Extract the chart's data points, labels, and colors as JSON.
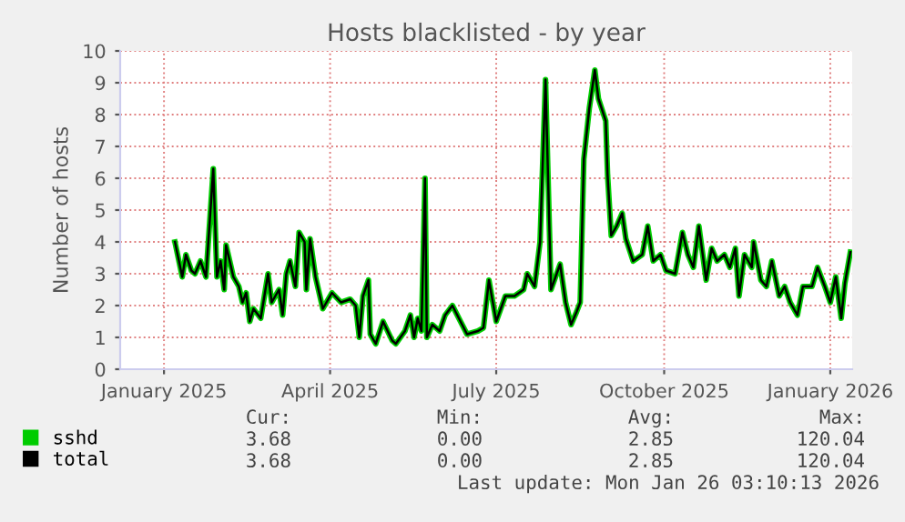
{
  "chart_data": {
    "type": "line",
    "title": "Hosts blacklisted - by year",
    "ylabel": "Number of hosts",
    "x": [
      "2025-01-21",
      "2025-01-25",
      "2025-01-27",
      "2025-01-30",
      "2025-02-01",
      "2025-02-04",
      "2025-02-07",
      "2025-02-11",
      "2025-02-13",
      "2025-02-15",
      "2025-02-17",
      "2025-02-18",
      "2025-02-20",
      "2025-02-22",
      "2025-02-25",
      "2025-02-27",
      "2025-03-01",
      "2025-03-03",
      "2025-03-05",
      "2025-03-09",
      "2025-03-13",
      "2025-03-15",
      "2025-03-19",
      "2025-03-21",
      "2025-03-23",
      "2025-03-25",
      "2025-03-28",
      "2025-03-30",
      "2025-04-02",
      "2025-04-03",
      "2025-04-05",
      "2025-04-08",
      "2025-04-12",
      "2025-04-17",
      "2025-04-22",
      "2025-04-27",
      "2025-04-30",
      "2025-05-02",
      "2025-05-04",
      "2025-05-07",
      "2025-05-08",
      "2025-05-11",
      "2025-05-15",
      "2025-05-20",
      "2025-05-22",
      "2025-05-27",
      "2025-05-30",
      "2025-06-01",
      "2025-06-03",
      "2025-06-05",
      "2025-06-07",
      "2025-06-08",
      "2025-06-11",
      "2025-06-15",
      "2025-06-18",
      "2025-06-22",
      "2025-06-30",
      "2025-07-06",
      "2025-07-09",
      "2025-07-12",
      "2025-07-16",
      "2025-07-21",
      "2025-07-26",
      "2025-07-31",
      "2025-08-02",
      "2025-08-06",
      "2025-08-09",
      "2025-08-12",
      "2025-08-15",
      "2025-08-20",
      "2025-08-23",
      "2025-08-26",
      "2025-08-29",
      "2025-08-31",
      "2025-09-02",
      "2025-09-05",
      "2025-09-08",
      "2025-09-10",
      "2025-09-14",
      "2025-09-15",
      "2025-09-17",
      "2025-09-20",
      "2025-09-23",
      "2025-09-25",
      "2025-09-29",
      "2025-10-04",
      "2025-10-07",
      "2025-10-10",
      "2025-10-14",
      "2025-10-17",
      "2025-10-22",
      "2025-10-26",
      "2025-10-29",
      "2025-11-01",
      "2025-11-04",
      "2025-11-08",
      "2025-11-11",
      "2025-11-14",
      "2025-11-18",
      "2025-11-21",
      "2025-11-24",
      "2025-11-26",
      "2025-11-29",
      "2025-12-03",
      "2025-12-04",
      "2025-12-08",
      "2025-12-11",
      "2025-12-14",
      "2025-12-18",
      "2025-12-21",
      "2025-12-24",
      "2025-12-28",
      "2025-12-31",
      "2026-01-05",
      "2026-01-08",
      "2026-01-12",
      "2026-01-15",
      "2026-01-18",
      "2026-01-21",
      "2026-01-23",
      "2026-01-26"
    ],
    "series": [
      {
        "name": "sshd",
        "color": "#00cc00",
        "values": [
          4.0,
          2.9,
          3.6,
          3.1,
          3.0,
          3.4,
          2.9,
          6.3,
          2.9,
          3.4,
          2.5,
          3.9,
          3.4,
          2.9,
          2.6,
          2.1,
          2.4,
          1.5,
          1.9,
          1.6,
          3.0,
          2.1,
          2.5,
          1.7,
          3.0,
          3.4,
          2.6,
          4.3,
          4.0,
          2.5,
          4.1,
          2.9,
          1.9,
          2.4,
          2.1,
          2.2,
          2.0,
          1.0,
          2.3,
          2.8,
          1.1,
          0.8,
          1.5,
          0.9,
          0.8,
          1.2,
          1.7,
          1.0,
          1.6,
          1.2,
          6.0,
          1.0,
          1.4,
          1.2,
          1.7,
          2.0,
          1.1,
          1.2,
          1.3,
          2.8,
          1.5,
          2.3,
          2.3,
          2.5,
          3.0,
          2.6,
          4.0,
          9.1,
          2.5,
          3.3,
          2.1,
          1.4,
          1.8,
          2.1,
          6.6,
          8.2,
          9.4,
          8.5,
          7.8,
          6.1,
          4.2,
          4.5,
          4.9,
          4.1,
          3.4,
          3.6,
          4.5,
          3.4,
          3.6,
          3.1,
          3.0,
          4.3,
          3.6,
          3.2,
          4.5,
          2.8,
          3.8,
          3.4,
          3.6,
          3.2,
          3.8,
          2.3,
          3.6,
          3.2,
          4.0,
          2.8,
          2.6,
          3.4,
          2.3,
          2.6,
          2.1,
          1.7,
          2.6,
          2.6,
          3.2,
          2.6,
          2.1,
          2.9,
          1.6,
          2.7,
          3.68
        ]
      },
      {
        "name": "total",
        "color": "#000000",
        "values": [
          4.0,
          2.9,
          3.6,
          3.1,
          3.0,
          3.4,
          2.9,
          6.3,
          2.9,
          3.4,
          2.5,
          3.9,
          3.4,
          2.9,
          2.6,
          2.1,
          2.4,
          1.5,
          1.9,
          1.6,
          3.0,
          2.1,
          2.5,
          1.7,
          3.0,
          3.4,
          2.6,
          4.3,
          4.0,
          2.5,
          4.1,
          2.9,
          1.9,
          2.4,
          2.1,
          2.2,
          2.0,
          1.0,
          2.3,
          2.8,
          1.1,
          0.8,
          1.5,
          0.9,
          0.8,
          1.2,
          1.7,
          1.0,
          1.6,
          1.2,
          6.0,
          1.0,
          1.4,
          1.2,
          1.7,
          2.0,
          1.1,
          1.2,
          1.3,
          2.8,
          1.5,
          2.3,
          2.3,
          2.5,
          3.0,
          2.6,
          4.0,
          9.1,
          2.5,
          3.3,
          2.1,
          1.4,
          1.8,
          2.1,
          6.6,
          8.2,
          9.4,
          8.5,
          7.8,
          6.1,
          4.2,
          4.5,
          4.9,
          4.1,
          3.4,
          3.6,
          4.5,
          3.4,
          3.6,
          3.1,
          3.0,
          4.3,
          3.6,
          3.2,
          4.5,
          2.8,
          3.8,
          3.4,
          3.6,
          3.2,
          3.8,
          2.3,
          3.6,
          3.2,
          4.0,
          2.8,
          2.6,
          3.4,
          2.3,
          2.6,
          2.1,
          1.7,
          2.6,
          2.6,
          3.2,
          2.6,
          2.1,
          2.9,
          1.6,
          2.7,
          3.68
        ]
      }
    ],
    "xlim": [
      "2024-12-22",
      "2026-01-27"
    ],
    "xticks": [
      {
        "value": "2025-01-15",
        "label": "January 2025"
      },
      {
        "value": "2025-04-16",
        "label": "April 2025"
      },
      {
        "value": "2025-07-16",
        "label": "July 2025"
      },
      {
        "value": "2025-10-16",
        "label": "October 2025"
      },
      {
        "value": "2026-01-15",
        "label": "January 2026"
      }
    ],
    "ylim": [
      0,
      10
    ],
    "yticks": [
      0,
      1,
      2,
      3,
      4,
      5,
      6,
      7,
      8,
      9,
      10
    ],
    "grid": true,
    "legend": "bottom left",
    "marker": "none",
    "line_style": "solid",
    "annotations": [
      "Cur:",
      "Min:",
      "Avg:",
      "Max:",
      "3.68",
      "0.00",
      "2.85",
      "120.04",
      "3.68",
      "0.00",
      "2.85",
      "120.04",
      "Last update: Mon Jan 26 03:10:13 2026"
    ]
  }
}
